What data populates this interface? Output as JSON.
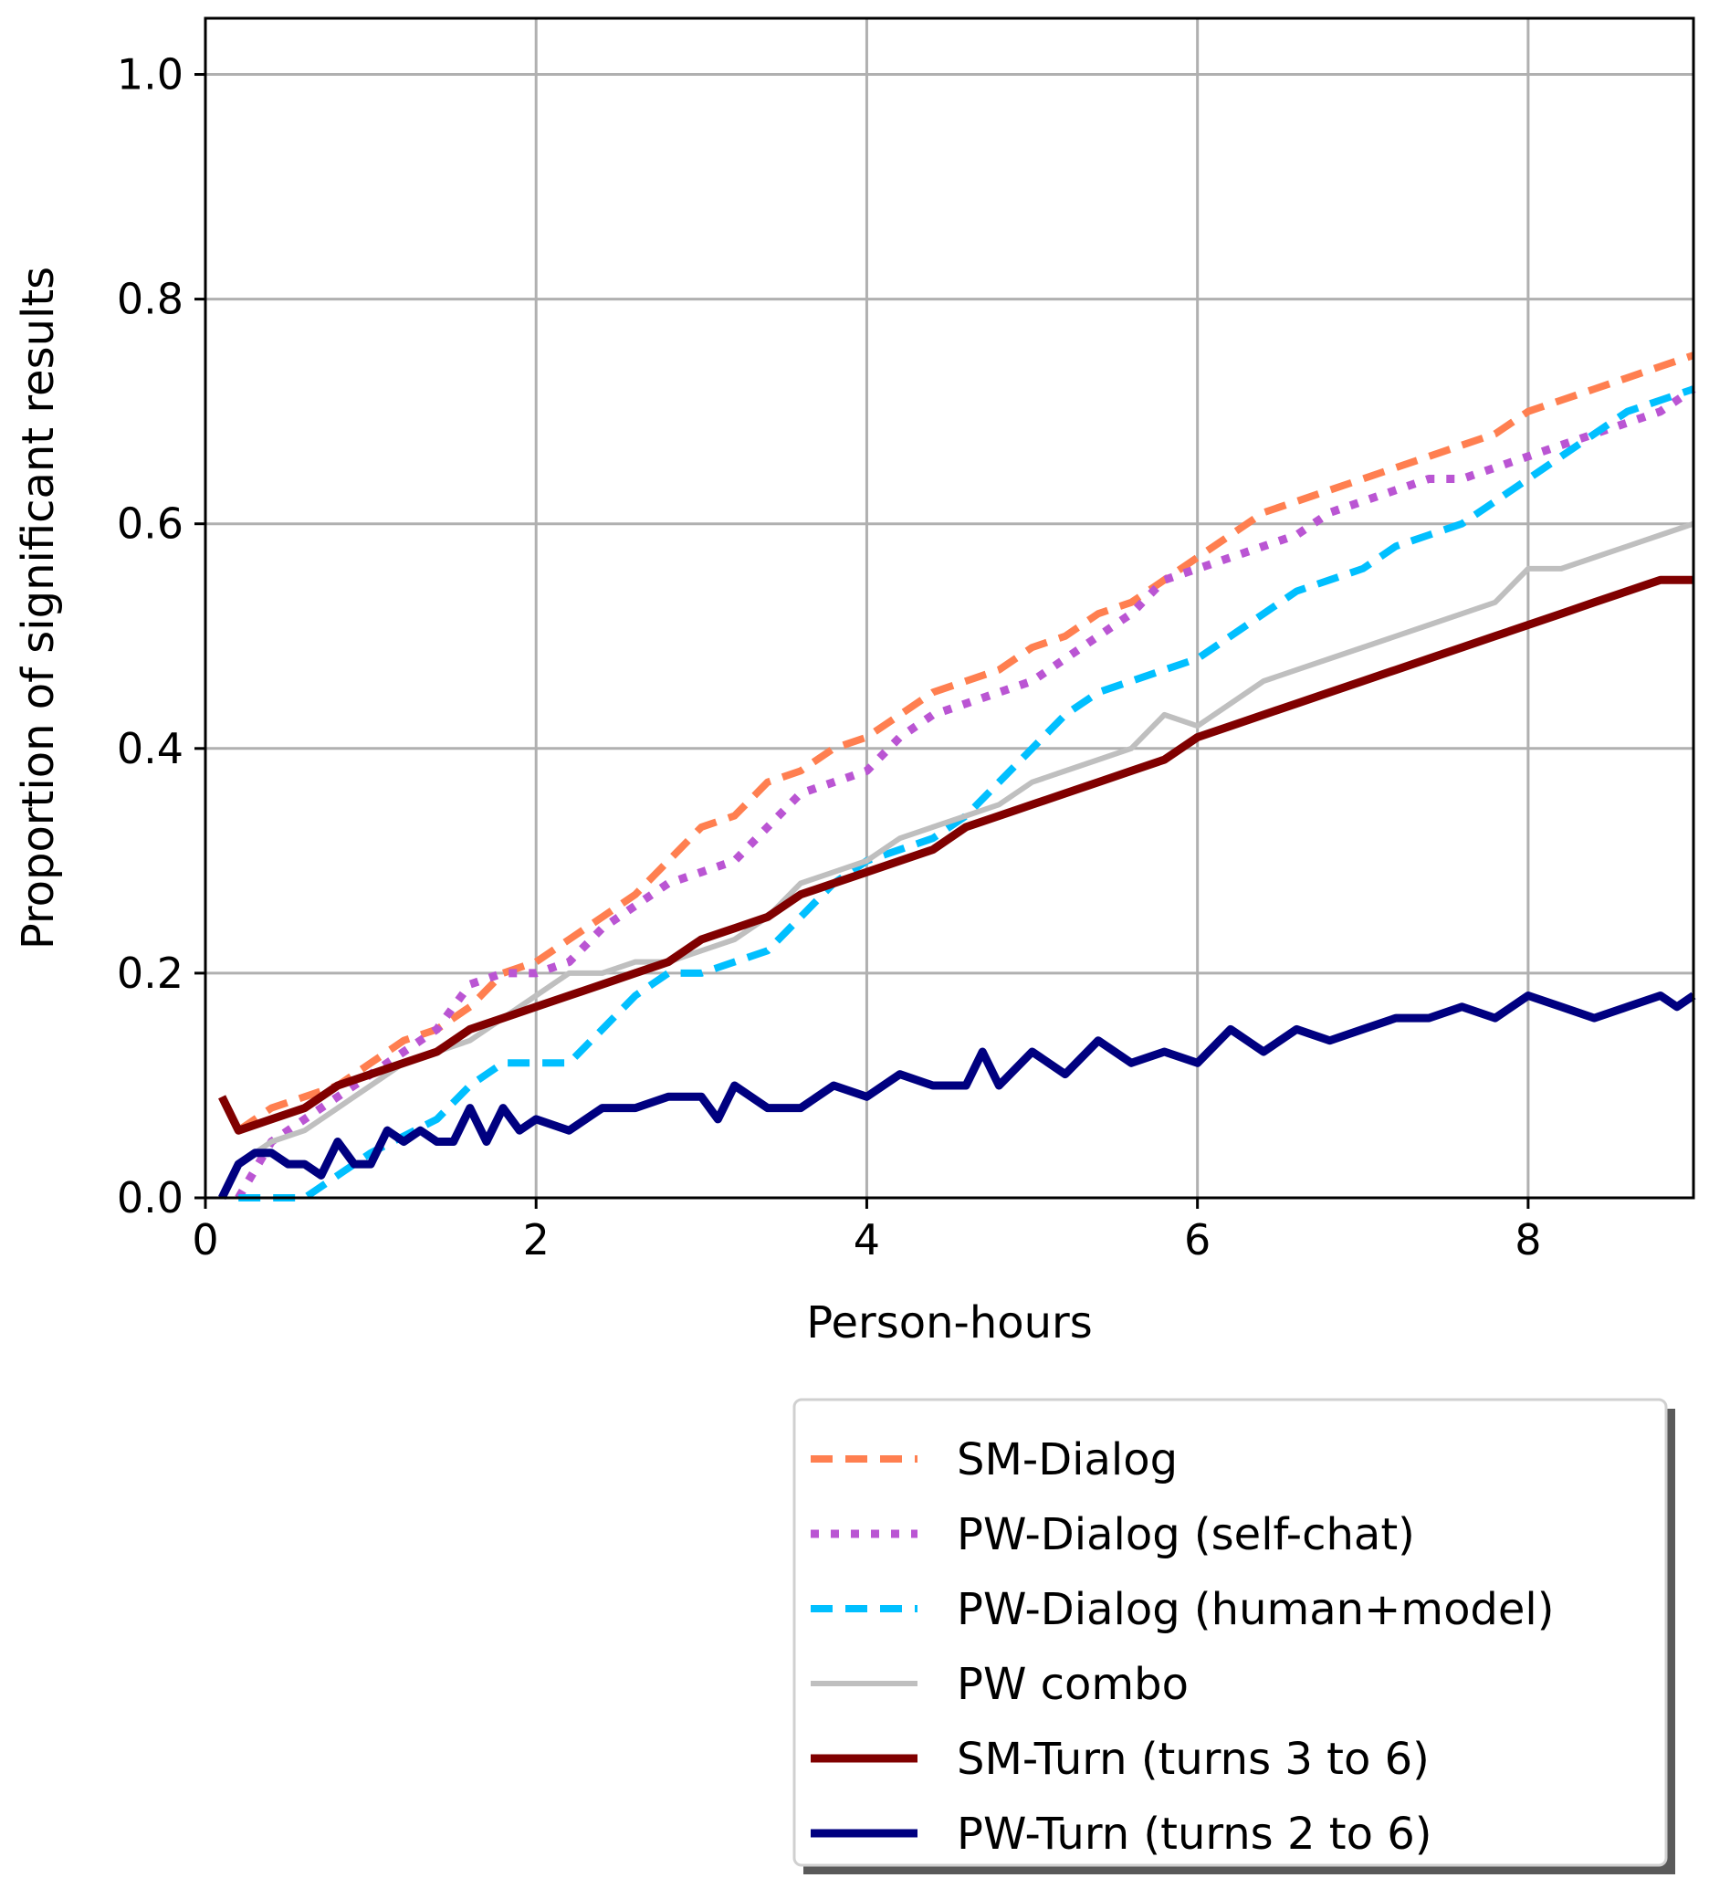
{
  "chart_data": {
    "type": "line",
    "xlabel": "Person-hours",
    "ylabel": "Proportion of significant results",
    "xlim": [
      0,
      9
    ],
    "ylim": [
      0,
      1.05
    ],
    "xticks": [
      0,
      2,
      4,
      6,
      8
    ],
    "yticks": [
      0.0,
      0.2,
      0.4,
      0.6,
      0.8,
      1.0
    ],
    "xtick_labels": [
      "0",
      "2",
      "4",
      "6",
      "8"
    ],
    "ytick_labels": [
      "0.0",
      "0.2",
      "0.4",
      "0.6",
      "0.8",
      "1.0"
    ],
    "grid": true,
    "legend_position": "below plot, right",
    "series": [
      {
        "name": "SM-Dialog",
        "color": "#ff7f50",
        "style": "dashed",
        "x": [
          0.2,
          0.4,
          0.6,
          0.8,
          1.0,
          1.2,
          1.4,
          1.6,
          1.8,
          2.0,
          2.2,
          2.4,
          2.6,
          2.8,
          3.0,
          3.2,
          3.4,
          3.6,
          3.8,
          4.0,
          4.2,
          4.4,
          4.6,
          4.8,
          5.0,
          5.2,
          5.4,
          5.6,
          5.8,
          6.0,
          6.2,
          6.4,
          6.6,
          6.8,
          7.0,
          7.2,
          7.4,
          7.6,
          7.8,
          8.0,
          8.2,
          8.4,
          8.6,
          8.8,
          9.0
        ],
        "y": [
          0.06,
          0.08,
          0.09,
          0.1,
          0.12,
          0.14,
          0.15,
          0.17,
          0.2,
          0.21,
          0.23,
          0.25,
          0.27,
          0.3,
          0.33,
          0.34,
          0.37,
          0.38,
          0.4,
          0.41,
          0.43,
          0.45,
          0.46,
          0.47,
          0.49,
          0.5,
          0.52,
          0.53,
          0.55,
          0.57,
          0.59,
          0.61,
          0.62,
          0.63,
          0.64,
          0.65,
          0.66,
          0.67,
          0.68,
          0.7,
          0.71,
          0.72,
          0.73,
          0.74,
          0.75
        ]
      },
      {
        "name": "PW-Dialog (self-chat)",
        "color": "#ba55d3",
        "style": "dotted",
        "x": [
          0.2,
          0.4,
          0.6,
          0.8,
          1.0,
          1.2,
          1.4,
          1.6,
          1.8,
          2.0,
          2.2,
          2.4,
          2.6,
          2.8,
          3.0,
          3.2,
          3.4,
          3.6,
          3.8,
          4.0,
          4.2,
          4.4,
          4.6,
          4.8,
          5.0,
          5.2,
          5.4,
          5.6,
          5.8,
          6.0,
          6.2,
          6.4,
          6.6,
          6.8,
          7.0,
          7.2,
          7.4,
          7.6,
          7.8,
          8.0,
          8.2,
          8.4,
          8.6,
          8.8,
          9.0
        ],
        "y": [
          0.0,
          0.05,
          0.07,
          0.09,
          0.11,
          0.13,
          0.15,
          0.19,
          0.2,
          0.2,
          0.21,
          0.24,
          0.26,
          0.28,
          0.29,
          0.3,
          0.33,
          0.36,
          0.37,
          0.38,
          0.41,
          0.43,
          0.44,
          0.45,
          0.46,
          0.48,
          0.5,
          0.52,
          0.55,
          0.56,
          0.57,
          0.58,
          0.59,
          0.61,
          0.62,
          0.63,
          0.64,
          0.64,
          0.65,
          0.66,
          0.67,
          0.68,
          0.69,
          0.7,
          0.72
        ]
      },
      {
        "name": "PW-Dialog (human+model)",
        "color": "#00bfff",
        "style": "dashed",
        "x": [
          0.2,
          0.6,
          1.0,
          1.4,
          1.6,
          1.8,
          2.0,
          2.2,
          2.4,
          2.6,
          2.8,
          3.0,
          3.2,
          3.4,
          3.6,
          3.8,
          4.0,
          4.2,
          4.4,
          4.6,
          4.8,
          5.0,
          5.2,
          5.4,
          5.6,
          5.8,
          6.0,
          6.2,
          6.4,
          6.6,
          6.8,
          7.0,
          7.2,
          7.4,
          7.6,
          7.8,
          8.0,
          8.2,
          8.4,
          8.6,
          8.8,
          9.0
        ],
        "y": [
          0.0,
          0.0,
          0.04,
          0.07,
          0.1,
          0.12,
          0.12,
          0.12,
          0.15,
          0.18,
          0.2,
          0.2,
          0.21,
          0.22,
          0.25,
          0.28,
          0.3,
          0.31,
          0.32,
          0.34,
          0.37,
          0.4,
          0.43,
          0.45,
          0.46,
          0.47,
          0.48,
          0.5,
          0.52,
          0.54,
          0.55,
          0.56,
          0.58,
          0.59,
          0.6,
          0.62,
          0.64,
          0.66,
          0.68,
          0.7,
          0.71,
          0.72
        ]
      },
      {
        "name": "PW combo",
        "color": "#bfbfbf",
        "style": "solid",
        "x": [
          0.2,
          0.4,
          0.6,
          0.8,
          1.0,
          1.2,
          1.4,
          1.6,
          1.8,
          2.0,
          2.2,
          2.4,
          2.6,
          2.8,
          3.0,
          3.2,
          3.4,
          3.6,
          3.8,
          4.0,
          4.2,
          4.4,
          4.6,
          4.8,
          5.0,
          5.2,
          5.4,
          5.6,
          5.8,
          6.0,
          6.2,
          6.4,
          6.6,
          6.8,
          7.0,
          7.2,
          7.4,
          7.6,
          7.8,
          8.0,
          8.2,
          8.4,
          8.6,
          8.8,
          9.0
        ],
        "y": [
          0.03,
          0.05,
          0.06,
          0.08,
          0.1,
          0.12,
          0.13,
          0.14,
          0.16,
          0.18,
          0.2,
          0.2,
          0.21,
          0.21,
          0.22,
          0.23,
          0.25,
          0.28,
          0.29,
          0.3,
          0.32,
          0.33,
          0.34,
          0.35,
          0.37,
          0.38,
          0.39,
          0.4,
          0.43,
          0.42,
          0.44,
          0.46,
          0.47,
          0.48,
          0.49,
          0.5,
          0.51,
          0.52,
          0.53,
          0.56,
          0.56,
          0.57,
          0.58,
          0.59,
          0.6
        ]
      },
      {
        "name": "SM-Turn (turns 3 to 6)",
        "color": "#800000",
        "style": "solid",
        "x": [
          0.1,
          0.2,
          0.4,
          0.6,
          0.8,
          1.0,
          1.2,
          1.4,
          1.6,
          1.8,
          2.0,
          2.2,
          2.4,
          2.6,
          2.8,
          3.0,
          3.2,
          3.4,
          3.6,
          3.8,
          4.0,
          4.2,
          4.4,
          4.6,
          4.8,
          5.0,
          5.2,
          5.4,
          5.6,
          5.8,
          6.0,
          6.2,
          6.4,
          6.6,
          6.8,
          7.0,
          7.2,
          7.4,
          7.6,
          7.8,
          8.0,
          8.2,
          8.4,
          8.6,
          8.8,
          9.0
        ],
        "y": [
          0.09,
          0.06,
          0.07,
          0.08,
          0.1,
          0.11,
          0.12,
          0.13,
          0.15,
          0.16,
          0.17,
          0.18,
          0.19,
          0.2,
          0.21,
          0.23,
          0.24,
          0.25,
          0.27,
          0.28,
          0.29,
          0.3,
          0.31,
          0.33,
          0.34,
          0.35,
          0.36,
          0.37,
          0.38,
          0.39,
          0.41,
          0.42,
          0.43,
          0.44,
          0.45,
          0.46,
          0.47,
          0.48,
          0.49,
          0.5,
          0.51,
          0.52,
          0.53,
          0.54,
          0.55,
          0.55
        ]
      },
      {
        "name": "PW-Turn (turns 2 to 6)",
        "color": "#000080",
        "style": "solid",
        "x": [
          0.1,
          0.2,
          0.3,
          0.4,
          0.5,
          0.6,
          0.7,
          0.8,
          0.9,
          1.0,
          1.1,
          1.2,
          1.3,
          1.4,
          1.5,
          1.6,
          1.7,
          1.8,
          1.9,
          2.0,
          2.2,
          2.4,
          2.6,
          2.8,
          3.0,
          3.1,
          3.2,
          3.4,
          3.6,
          3.8,
          4.0,
          4.2,
          4.4,
          4.6,
          4.7,
          4.8,
          5.0,
          5.2,
          5.4,
          5.6,
          5.8,
          6.0,
          6.2,
          6.4,
          6.6,
          6.8,
          7.0,
          7.2,
          7.4,
          7.6,
          7.8,
          8.0,
          8.2,
          8.4,
          8.6,
          8.8,
          8.9,
          9.0
        ],
        "y": [
          0.0,
          0.03,
          0.04,
          0.04,
          0.03,
          0.03,
          0.02,
          0.05,
          0.03,
          0.03,
          0.06,
          0.05,
          0.06,
          0.05,
          0.05,
          0.08,
          0.05,
          0.08,
          0.06,
          0.07,
          0.06,
          0.08,
          0.08,
          0.09,
          0.09,
          0.07,
          0.1,
          0.08,
          0.08,
          0.1,
          0.09,
          0.11,
          0.1,
          0.1,
          0.13,
          0.1,
          0.13,
          0.11,
          0.14,
          0.12,
          0.13,
          0.12,
          0.15,
          0.13,
          0.15,
          0.14,
          0.15,
          0.16,
          0.16,
          0.17,
          0.16,
          0.18,
          0.17,
          0.16,
          0.17,
          0.18,
          0.17,
          0.18
        ]
      }
    ]
  }
}
